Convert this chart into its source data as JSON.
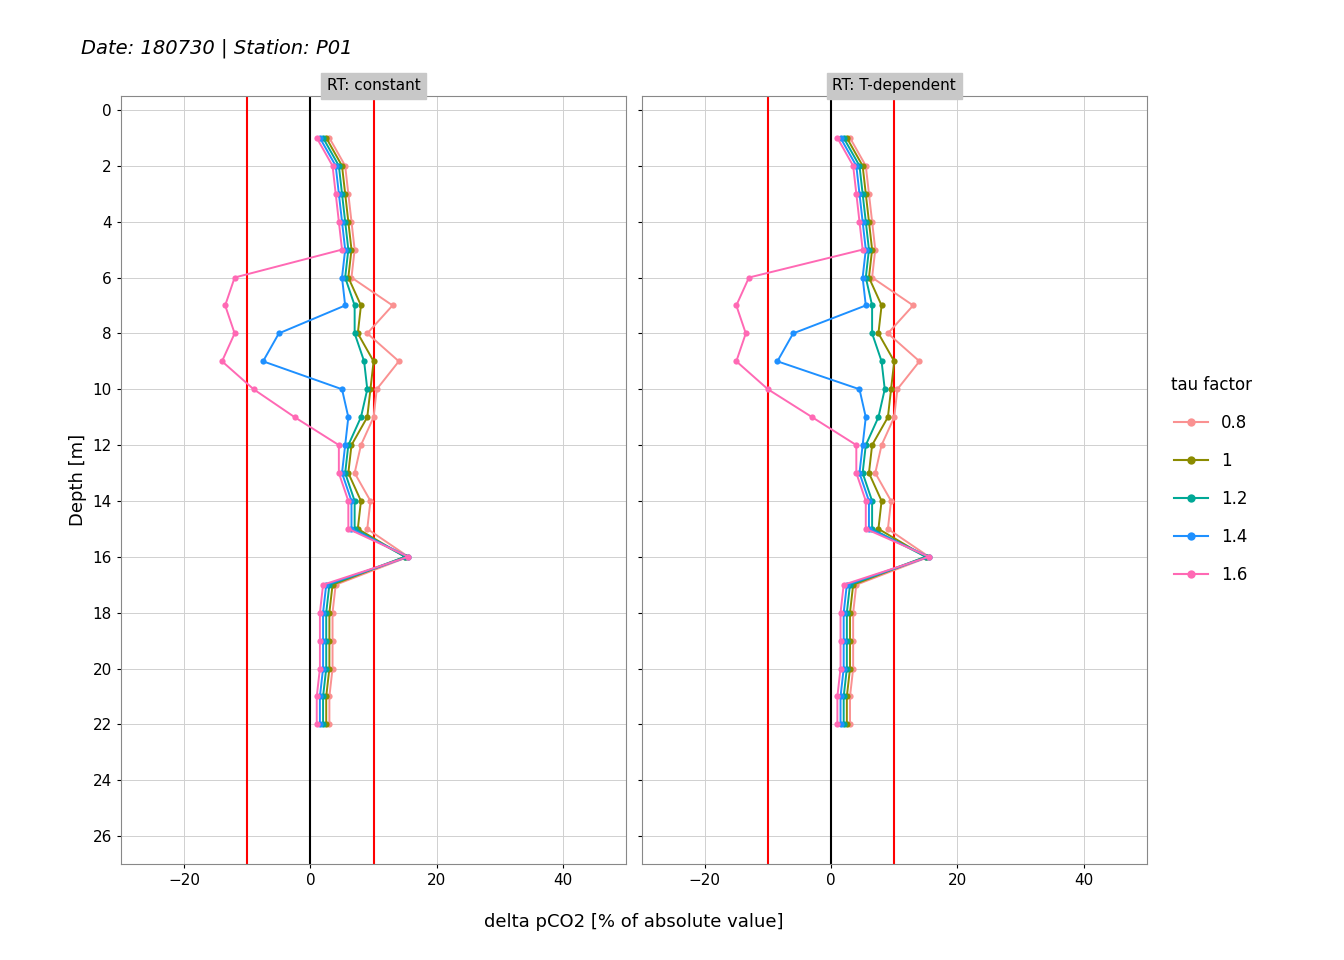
{
  "title": "Date: 180730 | Station: P01",
  "xlabel": "delta pCO2 [% of absolute value]",
  "ylabel": "Depth [m]",
  "panel_titles": [
    "RT: constant",
    "RT: T-dependent"
  ],
  "legend_title": "tau factor",
  "tau_factors": [
    "0.8",
    "1",
    "1.2",
    "1.4",
    "1.6"
  ],
  "colors": {
    "0.8": "#FA9191",
    "1": "#8B8B00",
    "1.2": "#00A896",
    "1.4": "#1E90FF",
    "1.6": "#FF69B4"
  },
  "depth": [
    1,
    2,
    3,
    4,
    5,
    6,
    7,
    8,
    9,
    10,
    11,
    12,
    13,
    14,
    15,
    16,
    17,
    18,
    19,
    20,
    21,
    22
  ],
  "constant": {
    "0.8": [
      3.0,
      5.5,
      6.0,
      6.5,
      7.0,
      6.5,
      13.0,
      9.0,
      14.0,
      10.5,
      10.0,
      8.0,
      7.0,
      9.5,
      9.0,
      15.5,
      4.0,
      3.5,
      3.5,
      3.5,
      3.0,
      3.0
    ],
    "1": [
      2.5,
      5.0,
      5.5,
      6.0,
      6.5,
      6.0,
      8.0,
      7.5,
      10.0,
      9.5,
      9.0,
      6.5,
      6.0,
      8.0,
      7.5,
      15.0,
      3.5,
      3.0,
      3.0,
      3.0,
      2.5,
      2.5
    ],
    "1.2": [
      2.0,
      4.5,
      5.0,
      5.5,
      6.0,
      5.5,
      7.0,
      7.0,
      8.5,
      9.0,
      8.0,
      6.0,
      5.5,
      7.0,
      7.0,
      15.0,
      3.0,
      2.5,
      2.5,
      2.5,
      2.0,
      2.0
    ],
    "1.4": [
      1.5,
      4.0,
      4.5,
      5.0,
      5.5,
      5.0,
      5.5,
      -5.0,
      -7.5,
      5.0,
      6.0,
      5.5,
      5.0,
      6.5,
      6.5,
      15.5,
      2.5,
      2.0,
      2.0,
      2.0,
      1.5,
      1.5
    ],
    "1.6": [
      1.0,
      3.5,
      4.0,
      4.5,
      5.0,
      -12.0,
      -13.5,
      -12.0,
      -14.0,
      -9.0,
      -2.5,
      4.5,
      4.5,
      6.0,
      6.0,
      15.5,
      2.0,
      1.5,
      1.5,
      1.5,
      1.0,
      1.0
    ]
  },
  "tdependent": {
    "0.8": [
      3.0,
      5.5,
      6.0,
      6.5,
      7.0,
      6.5,
      13.0,
      9.0,
      14.0,
      10.5,
      10.0,
      8.0,
      7.0,
      9.5,
      9.0,
      15.5,
      4.0,
      3.5,
      3.5,
      3.5,
      3.0,
      3.0
    ],
    "1": [
      2.5,
      5.0,
      5.5,
      6.0,
      6.5,
      6.0,
      8.0,
      7.5,
      10.0,
      9.5,
      9.0,
      6.5,
      6.0,
      8.0,
      7.5,
      15.0,
      3.5,
      3.0,
      3.0,
      3.0,
      2.5,
      2.5
    ],
    "1.2": [
      2.0,
      4.5,
      5.0,
      5.5,
      6.0,
      5.5,
      6.5,
      6.5,
      8.0,
      8.5,
      7.5,
      5.5,
      5.0,
      6.5,
      6.5,
      15.0,
      3.0,
      2.5,
      2.5,
      2.5,
      2.0,
      2.0
    ],
    "1.4": [
      1.5,
      4.0,
      4.5,
      5.0,
      5.5,
      5.0,
      5.5,
      -6.0,
      -8.5,
      4.5,
      5.5,
      5.0,
      4.5,
      6.0,
      6.0,
      15.5,
      2.5,
      2.0,
      2.0,
      2.0,
      1.5,
      1.5
    ],
    "1.6": [
      1.0,
      3.5,
      4.0,
      4.5,
      5.0,
      -13.0,
      -15.0,
      -13.5,
      -15.0,
      -10.0,
      -3.0,
      4.0,
      4.0,
      5.5,
      5.5,
      15.5,
      2.0,
      1.5,
      1.5,
      1.5,
      1.0,
      1.0
    ]
  },
  "xlim": [
    -30,
    50
  ],
  "ylim": [
    27,
    -0.5
  ],
  "xticks": [
    -20,
    0,
    20,
    40
  ],
  "yticks": [
    0,
    2,
    4,
    6,
    8,
    10,
    12,
    14,
    16,
    18,
    20,
    22,
    24,
    26
  ],
  "vlines_red": [
    -10,
    10
  ],
  "vline_black": 0,
  "background_color": "#FFFFFF",
  "panel_bg_color": "#FFFFFF",
  "grid_color": "#D0D0D0",
  "title_bg_color": "#C8C8C8"
}
